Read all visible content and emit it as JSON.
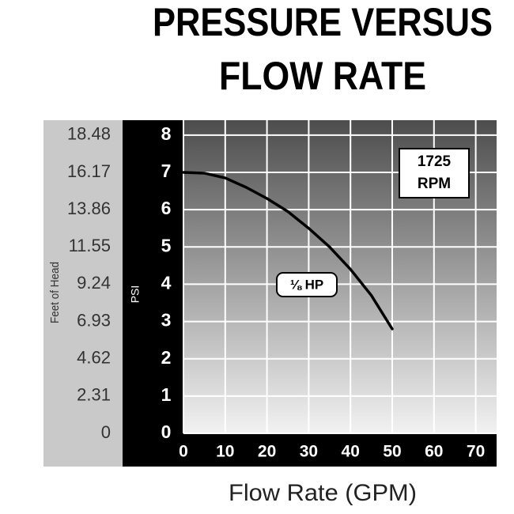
{
  "chart_data": {
    "type": "line",
    "title": [
      "PRESSURE VERSUS",
      "FLOW RATE"
    ],
    "x_label": "Flow Rate (GPM)",
    "y_label": "PSI",
    "y2_label": "Feet of Head",
    "annotation": [
      "1725",
      "RPM"
    ],
    "x": [
      0,
      5,
      10,
      15,
      20,
      25,
      30,
      35,
      40,
      45,
      50
    ],
    "series": [
      {
        "name": "⅛ HP",
        "color": "#000000",
        "values": [
          7.0,
          6.98,
          6.85,
          6.6,
          6.3,
          5.95,
          5.5,
          5.0,
          4.4,
          3.7,
          2.8
        ]
      }
    ],
    "xlim": [
      0,
      75
    ],
    "xticks": [
      0,
      10,
      20,
      30,
      40,
      50,
      60,
      70
    ],
    "ylim": [
      0,
      8.4
    ],
    "yticks": [
      0,
      1,
      2,
      3,
      4,
      5,
      6,
      7,
      8
    ],
    "y2lim": [
      0,
      19.404
    ],
    "y2ticks": [
      0,
      2.31,
      4.62,
      6.93,
      9.24,
      11.55,
      13.86,
      16.17,
      18.48
    ],
    "grid": true
  }
}
